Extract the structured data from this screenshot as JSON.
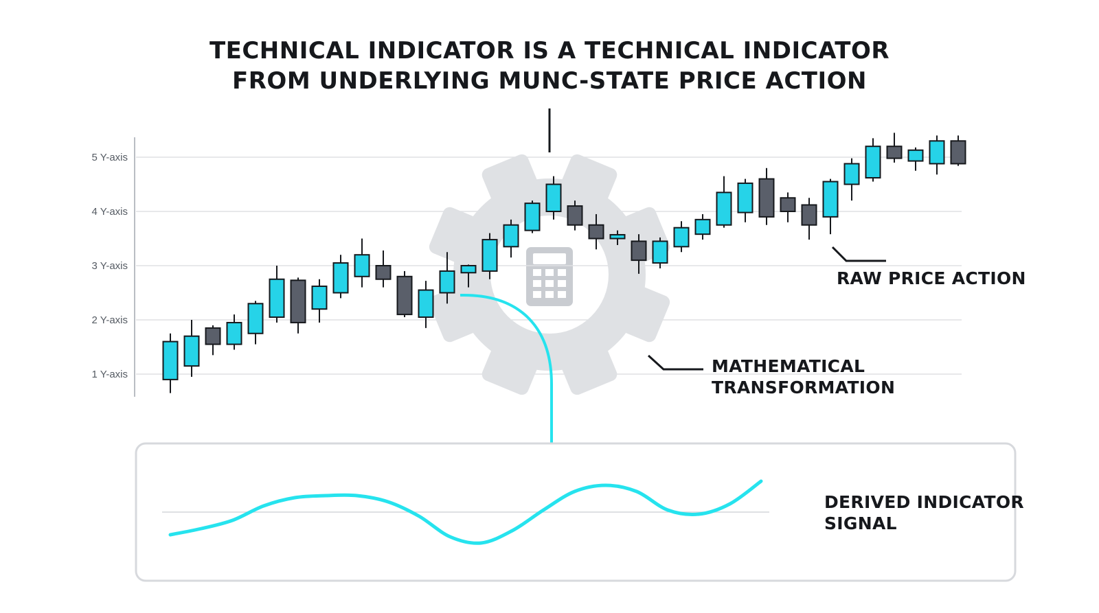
{
  "title": {
    "line1": "TECHNICAL INDICATOR IS A TECHNICAL INDICATOR",
    "line2": "FROM UNDERLYING MUNC-STATE PRICE ACTION"
  },
  "callouts": {
    "raw_price_action": "RAW PRICE ACTION",
    "math_line1": "MATHEMATICAL",
    "math_line2": "TRANSFORMATION",
    "derived_line1": "DERIVED INDICATOR",
    "derived_line2": "SIGNAL"
  },
  "icons": {
    "center": "gear-icon",
    "inner": "calculator-icon"
  },
  "colors": {
    "bullish": "#26d3e8",
    "bearish": "#5a5f6a",
    "signal": "#26e3ee",
    "gear": "#d7d9dd",
    "ink": "#16181c"
  },
  "chart_data": {
    "type": "candlestick",
    "ylim": [
      0.6,
      5.4
    ],
    "yticks": [
      {
        "value": 1,
        "label": "1 Y-axis"
      },
      {
        "value": 2,
        "label": "2 Y-axis"
      },
      {
        "value": 3,
        "label": "3 Y-axis"
      },
      {
        "value": 4,
        "label": "4 Y-axis"
      },
      {
        "value": 5,
        "label": "5 Y-axis"
      }
    ],
    "candles": [
      {
        "open": 0.9,
        "close": 1.6,
        "high": 1.75,
        "low": 0.65
      },
      {
        "open": 1.15,
        "close": 1.7,
        "high": 2.0,
        "low": 0.95
      },
      {
        "open": 1.85,
        "close": 1.55,
        "high": 1.9,
        "low": 1.35
      },
      {
        "open": 1.55,
        "close": 1.95,
        "high": 2.1,
        "low": 1.45
      },
      {
        "open": 1.75,
        "close": 2.3,
        "high": 2.35,
        "low": 1.55
      },
      {
        "open": 2.05,
        "close": 2.75,
        "high": 3.0,
        "low": 1.95
      },
      {
        "open": 2.73,
        "close": 1.95,
        "high": 2.78,
        "low": 1.75
      },
      {
        "open": 2.2,
        "close": 2.62,
        "high": 2.75,
        "low": 1.95
      },
      {
        "open": 2.5,
        "close": 3.05,
        "high": 3.2,
        "low": 2.4
      },
      {
        "open": 2.8,
        "close": 3.2,
        "high": 3.5,
        "low": 2.6
      },
      {
        "open": 3.0,
        "close": 2.75,
        "high": 3.28,
        "low": 2.6
      },
      {
        "open": 2.8,
        "close": 2.1,
        "high": 2.9,
        "low": 2.05
      },
      {
        "open": 2.05,
        "close": 2.55,
        "high": 2.72,
        "low": 1.85
      },
      {
        "open": 2.5,
        "close": 2.9,
        "high": 3.25,
        "low": 2.3
      },
      {
        "open": 2.87,
        "close": 3.0,
        "high": 3.02,
        "low": 2.6
      },
      {
        "open": 2.9,
        "close": 3.48,
        "high": 3.6,
        "low": 2.75
      },
      {
        "open": 3.35,
        "close": 3.75,
        "high": 3.85,
        "low": 3.15
      },
      {
        "open": 3.65,
        "close": 4.15,
        "high": 4.2,
        "low": 3.6
      },
      {
        "open": 4.0,
        "close": 4.5,
        "high": 4.65,
        "low": 3.85
      },
      {
        "open": 4.1,
        "close": 3.75,
        "high": 4.2,
        "low": 3.65
      },
      {
        "open": 3.75,
        "close": 3.5,
        "high": 3.95,
        "low": 3.3
      },
      {
        "open": 3.5,
        "close": 3.57,
        "high": 3.65,
        "low": 3.38
      },
      {
        "open": 3.45,
        "close": 3.1,
        "high": 3.58,
        "low": 2.85
      },
      {
        "open": 3.05,
        "close": 3.45,
        "high": 3.52,
        "low": 2.95
      },
      {
        "open": 3.35,
        "close": 3.7,
        "high": 3.82,
        "low": 3.25
      },
      {
        "open": 3.58,
        "close": 3.85,
        "high": 3.95,
        "low": 3.48
      },
      {
        "open": 3.75,
        "close": 4.35,
        "high": 4.65,
        "low": 3.7
      },
      {
        "open": 3.98,
        "close": 4.52,
        "high": 4.6,
        "low": 3.8
      },
      {
        "open": 4.6,
        "close": 3.9,
        "high": 4.8,
        "low": 3.75
      },
      {
        "open": 4.25,
        "close": 4.0,
        "high": 4.35,
        "low": 3.8
      },
      {
        "open": 4.12,
        "close": 3.75,
        "high": 4.25,
        "low": 3.48
      },
      {
        "open": 3.9,
        "close": 4.55,
        "high": 4.6,
        "low": 3.58
      },
      {
        "open": 4.5,
        "close": 4.88,
        "high": 4.98,
        "low": 4.2
      },
      {
        "open": 4.62,
        "close": 5.2,
        "high": 5.35,
        "low": 4.55
      },
      {
        "open": 5.2,
        "close": 4.98,
        "high": 5.45,
        "low": 4.9
      },
      {
        "open": 4.93,
        "close": 5.13,
        "high": 5.18,
        "low": 4.75
      },
      {
        "open": 4.88,
        "close": 5.3,
        "high": 5.4,
        "low": 4.68
      },
      {
        "open": 5.3,
        "close": 4.88,
        "high": 5.4,
        "low": 4.84
      }
    ],
    "signal": {
      "baseline": 0,
      "values": [
        -0.55,
        -0.4,
        -0.2,
        0.15,
        0.35,
        0.4,
        0.4,
        0.25,
        -0.1,
        -0.6,
        -0.75,
        -0.45,
        0.05,
        0.5,
        0.65,
        0.5,
        0.05,
        -0.05,
        0.2,
        0.75
      ]
    }
  }
}
